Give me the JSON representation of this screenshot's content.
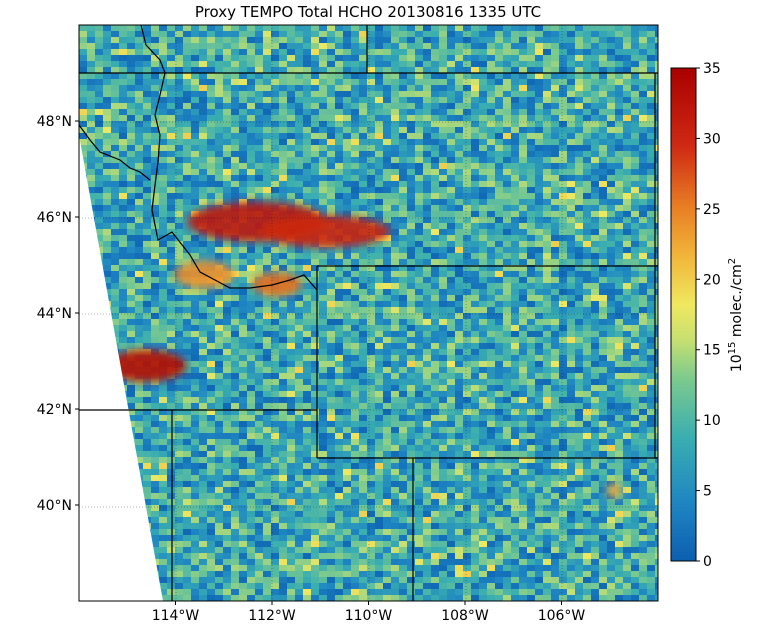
{
  "chart_data": {
    "type": "heatmap",
    "title": "Proxy TEMPO Total HCHO  20130816 1335 UTC",
    "map_extent": {
      "lon": [
        -116,
        -104
      ],
      "lat": [
        38,
        50
      ]
    },
    "lon_ticks": [
      {
        "value": -114,
        "label": "114°W"
      },
      {
        "value": -112,
        "label": "112°W"
      },
      {
        "value": -110,
        "label": "110°W"
      },
      {
        "value": -108,
        "label": "108°W"
      },
      {
        "value": -106,
        "label": "106°W"
      }
    ],
    "lat_ticks": [
      {
        "value": 48,
        "label": "48°N"
      },
      {
        "value": 46,
        "label": "46°N"
      },
      {
        "value": 44,
        "label": "44°N"
      },
      {
        "value": 42,
        "label": "42°N"
      },
      {
        "value": 40,
        "label": "40°N"
      }
    ],
    "colorbar": {
      "range": [
        0,
        35
      ],
      "ticks": [
        0,
        5,
        10,
        15,
        20,
        25,
        30,
        35
      ],
      "label_base": "10",
      "label_exp": "15",
      "label_rest": " molec./cm",
      "label_sup": "2",
      "colormap": "jet-like"
    },
    "hotspots": [
      {
        "lon": -112.3,
        "lat": 45.9,
        "value": 32
      },
      {
        "lon": -110.9,
        "lat": 45.7,
        "value": 30
      },
      {
        "lon": -114.6,
        "lat": 42.9,
        "value": 33
      },
      {
        "lon": -113.4,
        "lat": 44.8,
        "value": 24
      },
      {
        "lon": -111.9,
        "lat": 44.6,
        "value": 26
      },
      {
        "lon": -104.9,
        "lat": 40.3,
        "value": 22
      }
    ],
    "background_value": 8
  }
}
